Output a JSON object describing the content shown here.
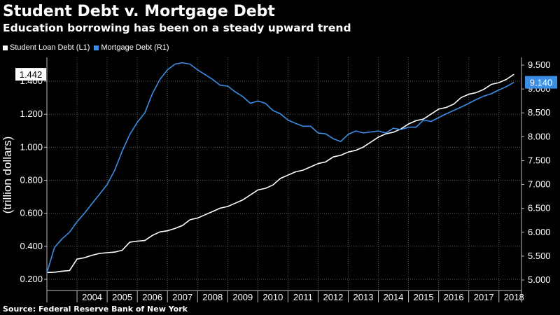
{
  "header": {
    "title": "Student Debt v. Mortgage Debt",
    "subtitle": "Education borrowing has been on a steady upward trend"
  },
  "footer": {
    "source": "Source: Federal Reserve Bank of New York"
  },
  "colors": {
    "background": "#000000",
    "student_loan": "#ffffff",
    "mortgage": "#3a8ee6",
    "grid": "#5a5a5a",
    "text": "#ffffff"
  },
  "chart_data": {
    "type": "line",
    "title": "Student Debt v. Mortgage Debt",
    "subtitle": "Education borrowing has been on a steady upward trend",
    "ylabel_left": "(trillion dollars)",
    "ylim_left": [
      0.2,
      1.5
    ],
    "yticks_left": [
      "0.200",
      "0.400",
      "0.600",
      "0.800",
      "1.000",
      "1.200",
      "1.400"
    ],
    "ylim_right": [
      5.0,
      9.6
    ],
    "yticks_right": [
      "5.000",
      "5.500",
      "6.000",
      "6.500",
      "7.000",
      "7.500",
      "8.000",
      "8.500",
      "9.000",
      "9.500"
    ],
    "x_categories": [
      "2004",
      "2005",
      "2006",
      "2007",
      "2008",
      "2009",
      "2010",
      "2011",
      "2012",
      "2013",
      "2014",
      "2015",
      "2016",
      "2017",
      "2018"
    ],
    "xlim": [
      2003.0,
      2018.75
    ],
    "grid": true,
    "legend_position": "top-left",
    "series": [
      {
        "name": "Student Loan Debt (L1)",
        "axis": "left",
        "color": "#ffffff",
        "last_value_label": "1.442",
        "x": [
          2003.0,
          2003.25,
          2003.5,
          2003.75,
          2004.0,
          2004.25,
          2004.5,
          2004.75,
          2005.0,
          2005.25,
          2005.5,
          2005.75,
          2006.0,
          2006.25,
          2006.5,
          2006.75,
          2007.0,
          2007.25,
          2007.5,
          2007.75,
          2008.0,
          2008.25,
          2008.5,
          2008.75,
          2009.0,
          2009.25,
          2009.5,
          2009.75,
          2010.0,
          2010.25,
          2010.5,
          2010.75,
          2011.0,
          2011.25,
          2011.5,
          2011.75,
          2012.0,
          2012.25,
          2012.5,
          2012.75,
          2013.0,
          2013.25,
          2013.5,
          2013.75,
          2014.0,
          2014.25,
          2014.5,
          2014.75,
          2015.0,
          2015.25,
          2015.5,
          2015.75,
          2016.0,
          2016.25,
          2016.5,
          2016.75,
          2017.0,
          2017.25,
          2017.5,
          2017.75,
          2018.0,
          2018.25,
          2018.5
        ],
        "values": [
          0.241,
          0.243,
          0.249,
          0.253,
          0.322,
          0.331,
          0.346,
          0.357,
          0.361,
          0.365,
          0.376,
          0.425,
          0.431,
          0.435,
          0.466,
          0.487,
          0.494,
          0.508,
          0.526,
          0.561,
          0.571,
          0.591,
          0.611,
          0.631,
          0.641,
          0.661,
          0.681,
          0.711,
          0.741,
          0.751,
          0.771,
          0.811,
          0.831,
          0.851,
          0.861,
          0.881,
          0.901,
          0.911,
          0.941,
          0.951,
          0.971,
          0.981,
          1.001,
          1.031,
          1.061,
          1.081,
          1.091,
          1.111,
          1.141,
          1.161,
          1.171,
          1.201,
          1.231,
          1.241,
          1.261,
          1.301,
          1.321,
          1.331,
          1.351,
          1.381,
          1.391,
          1.411,
          1.442
        ]
      },
      {
        "name": "Mortgage Debt (R1)",
        "axis": "right",
        "color": "#3a8ee6",
        "last_value_label": "9.140",
        "x": [
          2003.0,
          2003.25,
          2003.5,
          2003.75,
          2004.0,
          2004.25,
          2004.5,
          2004.75,
          2005.0,
          2005.25,
          2005.5,
          2005.75,
          2006.0,
          2006.25,
          2006.5,
          2006.75,
          2007.0,
          2007.25,
          2007.5,
          2007.75,
          2008.0,
          2008.25,
          2008.5,
          2008.75,
          2009.0,
          2009.25,
          2009.5,
          2009.75,
          2010.0,
          2010.25,
          2010.5,
          2010.75,
          2011.0,
          2011.25,
          2011.5,
          2011.75,
          2012.0,
          2012.25,
          2012.5,
          2012.75,
          2013.0,
          2013.25,
          2013.5,
          2013.75,
          2014.0,
          2014.25,
          2014.5,
          2014.75,
          2015.0,
          2015.25,
          2015.5,
          2015.75,
          2016.0,
          2016.25,
          2016.5,
          2016.75,
          2017.0,
          2017.25,
          2017.5,
          2017.75,
          2018.0,
          2018.25,
          2018.5
        ],
        "values": [
          5.15,
          5.68,
          5.86,
          6.0,
          6.22,
          6.4,
          6.6,
          6.8,
          7.0,
          7.3,
          7.7,
          8.05,
          8.3,
          8.5,
          8.9,
          9.2,
          9.4,
          9.52,
          9.55,
          9.52,
          9.4,
          9.3,
          9.2,
          9.08,
          9.06,
          8.94,
          8.84,
          8.7,
          8.75,
          8.7,
          8.55,
          8.48,
          8.35,
          8.28,
          8.22,
          8.22,
          8.08,
          8.06,
          7.96,
          7.9,
          8.05,
          8.12,
          8.08,
          8.1,
          8.12,
          8.08,
          8.18,
          8.15,
          8.2,
          8.2,
          8.35,
          8.32,
          8.4,
          8.48,
          8.55,
          8.62,
          8.7,
          8.78,
          8.85,
          8.9,
          8.98,
          9.05,
          9.14
        ]
      }
    ]
  }
}
